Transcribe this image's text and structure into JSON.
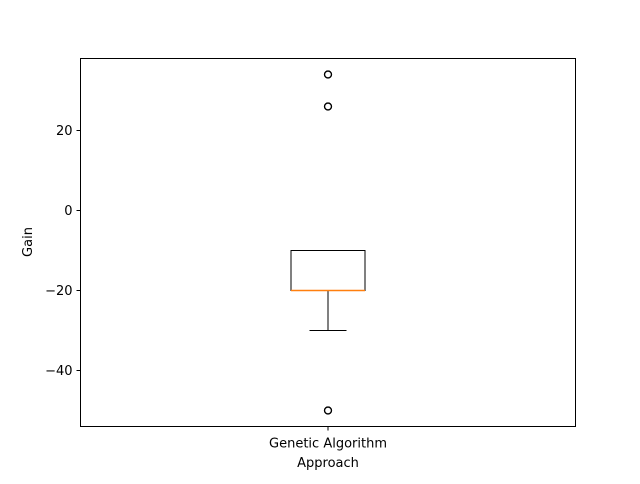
{
  "chart_data": {
    "type": "box",
    "title": "",
    "xlabel": "Approach",
    "ylabel": "Gain",
    "categories": [
      "Genetic Algorithm"
    ],
    "ylim": [
      -54,
      38
    ],
    "yticks": [
      -40,
      -20,
      0,
      20
    ],
    "yticks_labels": [
      "−40",
      "−20",
      "0",
      "20"
    ],
    "grid": false,
    "boxes": [
      {
        "category": "Genetic Algorithm",
        "whisker_low": -30,
        "q1": -20,
        "median": -20,
        "q3": -10,
        "whisker_high": -10,
        "outliers": [
          34,
          34,
          26,
          26,
          -50,
          -50
        ]
      }
    ],
    "colors": {
      "box": "#000000",
      "median": "#ff7f0e",
      "outlier": "#000000"
    }
  }
}
